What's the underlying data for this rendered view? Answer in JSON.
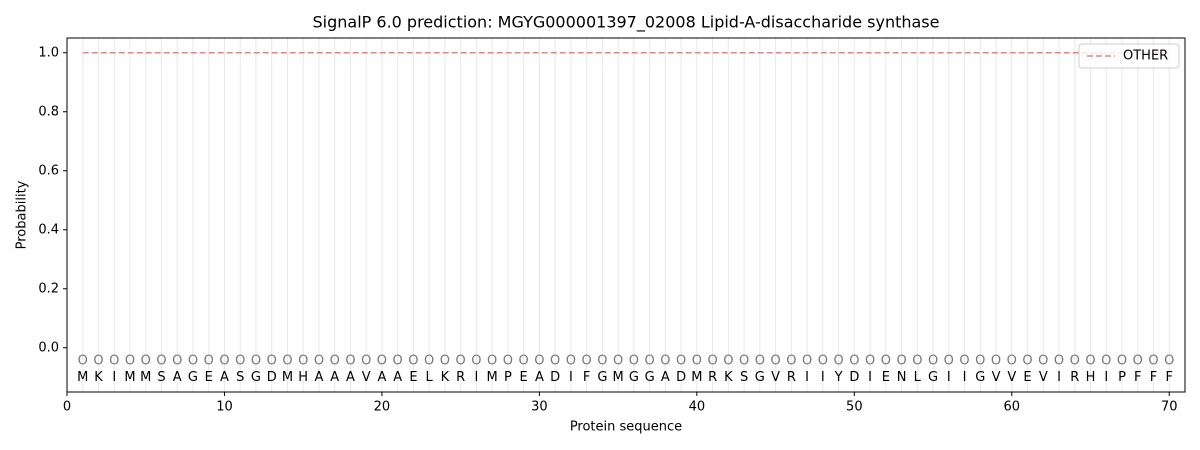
{
  "chart_data": {
    "type": "line",
    "title": "SignalP 6.0 prediction: MGYG000001397_02008 Lipid-A-disaccharide synthase",
    "x_label": "Protein sequence",
    "y_label": "Probability",
    "x": [
      1,
      2,
      3,
      4,
      5,
      6,
      7,
      8,
      9,
      10,
      11,
      12,
      13,
      14,
      15,
      16,
      17,
      18,
      19,
      20,
      21,
      22,
      23,
      24,
      25,
      26,
      27,
      28,
      29,
      30,
      31,
      32,
      33,
      34,
      35,
      36,
      37,
      38,
      39,
      40,
      41,
      42,
      43,
      44,
      45,
      46,
      47,
      48,
      49,
      50,
      51,
      52,
      53,
      54,
      55,
      56,
      57,
      58,
      59,
      60,
      61,
      62,
      63,
      64,
      65,
      66,
      67,
      68,
      69,
      70
    ],
    "residues": [
      "M",
      "K",
      "I",
      "M",
      "M",
      "S",
      "A",
      "G",
      "E",
      "A",
      "S",
      "G",
      "D",
      "M",
      "H",
      "A",
      "A",
      "A",
      "V",
      "A",
      "A",
      "E",
      "L",
      "K",
      "R",
      "I",
      "M",
      "P",
      "E",
      "A",
      "D",
      "I",
      "F",
      "G",
      "M",
      "G",
      "G",
      "A",
      "D",
      "M",
      "R",
      "K",
      "S",
      "G",
      "V",
      "R",
      "I",
      "I",
      "Y",
      "D",
      "I",
      "E",
      "N",
      "L",
      "G",
      "I",
      "I",
      "G",
      "V",
      "V",
      "E",
      "V",
      "I",
      "R",
      "H",
      "I",
      "P",
      "F",
      "F",
      "F"
    ],
    "predicted_labels": [
      "O",
      "O",
      "O",
      "O",
      "O",
      "O",
      "O",
      "O",
      "O",
      "O",
      "O",
      "O",
      "O",
      "O",
      "O",
      "O",
      "O",
      "O",
      "O",
      "O",
      "O",
      "O",
      "O",
      "O",
      "O",
      "O",
      "O",
      "O",
      "O",
      "O",
      "O",
      "O",
      "O",
      "O",
      "O",
      "O",
      "O",
      "O",
      "O",
      "O",
      "O",
      "O",
      "O",
      "O",
      "O",
      "O",
      "O",
      "O",
      "O",
      "O",
      "O",
      "O",
      "O",
      "O",
      "O",
      "O",
      "O",
      "O",
      "O",
      "O",
      "O",
      "O",
      "O",
      "O",
      "O",
      "O",
      "O",
      "O",
      "O",
      "O"
    ],
    "series": [
      {
        "name": "OTHER",
        "color": "#f08080",
        "dashed": true,
        "values": [
          1,
          1,
          1,
          1,
          1,
          1,
          1,
          1,
          1,
          1,
          1,
          1,
          1,
          1,
          1,
          1,
          1,
          1,
          1,
          1,
          1,
          1,
          1,
          1,
          1,
          1,
          1,
          1,
          1,
          1,
          1,
          1,
          1,
          1,
          1,
          1,
          1,
          1,
          1,
          1,
          1,
          1,
          1,
          1,
          1,
          1,
          1,
          1,
          1,
          1,
          1,
          1,
          1,
          1,
          1,
          1,
          1,
          1,
          1,
          1,
          1,
          1,
          1,
          1,
          1,
          1,
          1,
          1,
          1,
          1
        ]
      }
    ],
    "xlim": [
      0,
      71
    ],
    "ylim": [
      -0.15,
      1.05
    ],
    "xticks": [
      0,
      10,
      20,
      30,
      40,
      50,
      60,
      70
    ],
    "yticks": [
      {
        "value": 0,
        "label": "0.0"
      },
      0.2,
      0.4,
      0.6,
      0.8,
      {
        "value": 1,
        "label": "1.0"
      }
    ],
    "legend": "upper right"
  }
}
